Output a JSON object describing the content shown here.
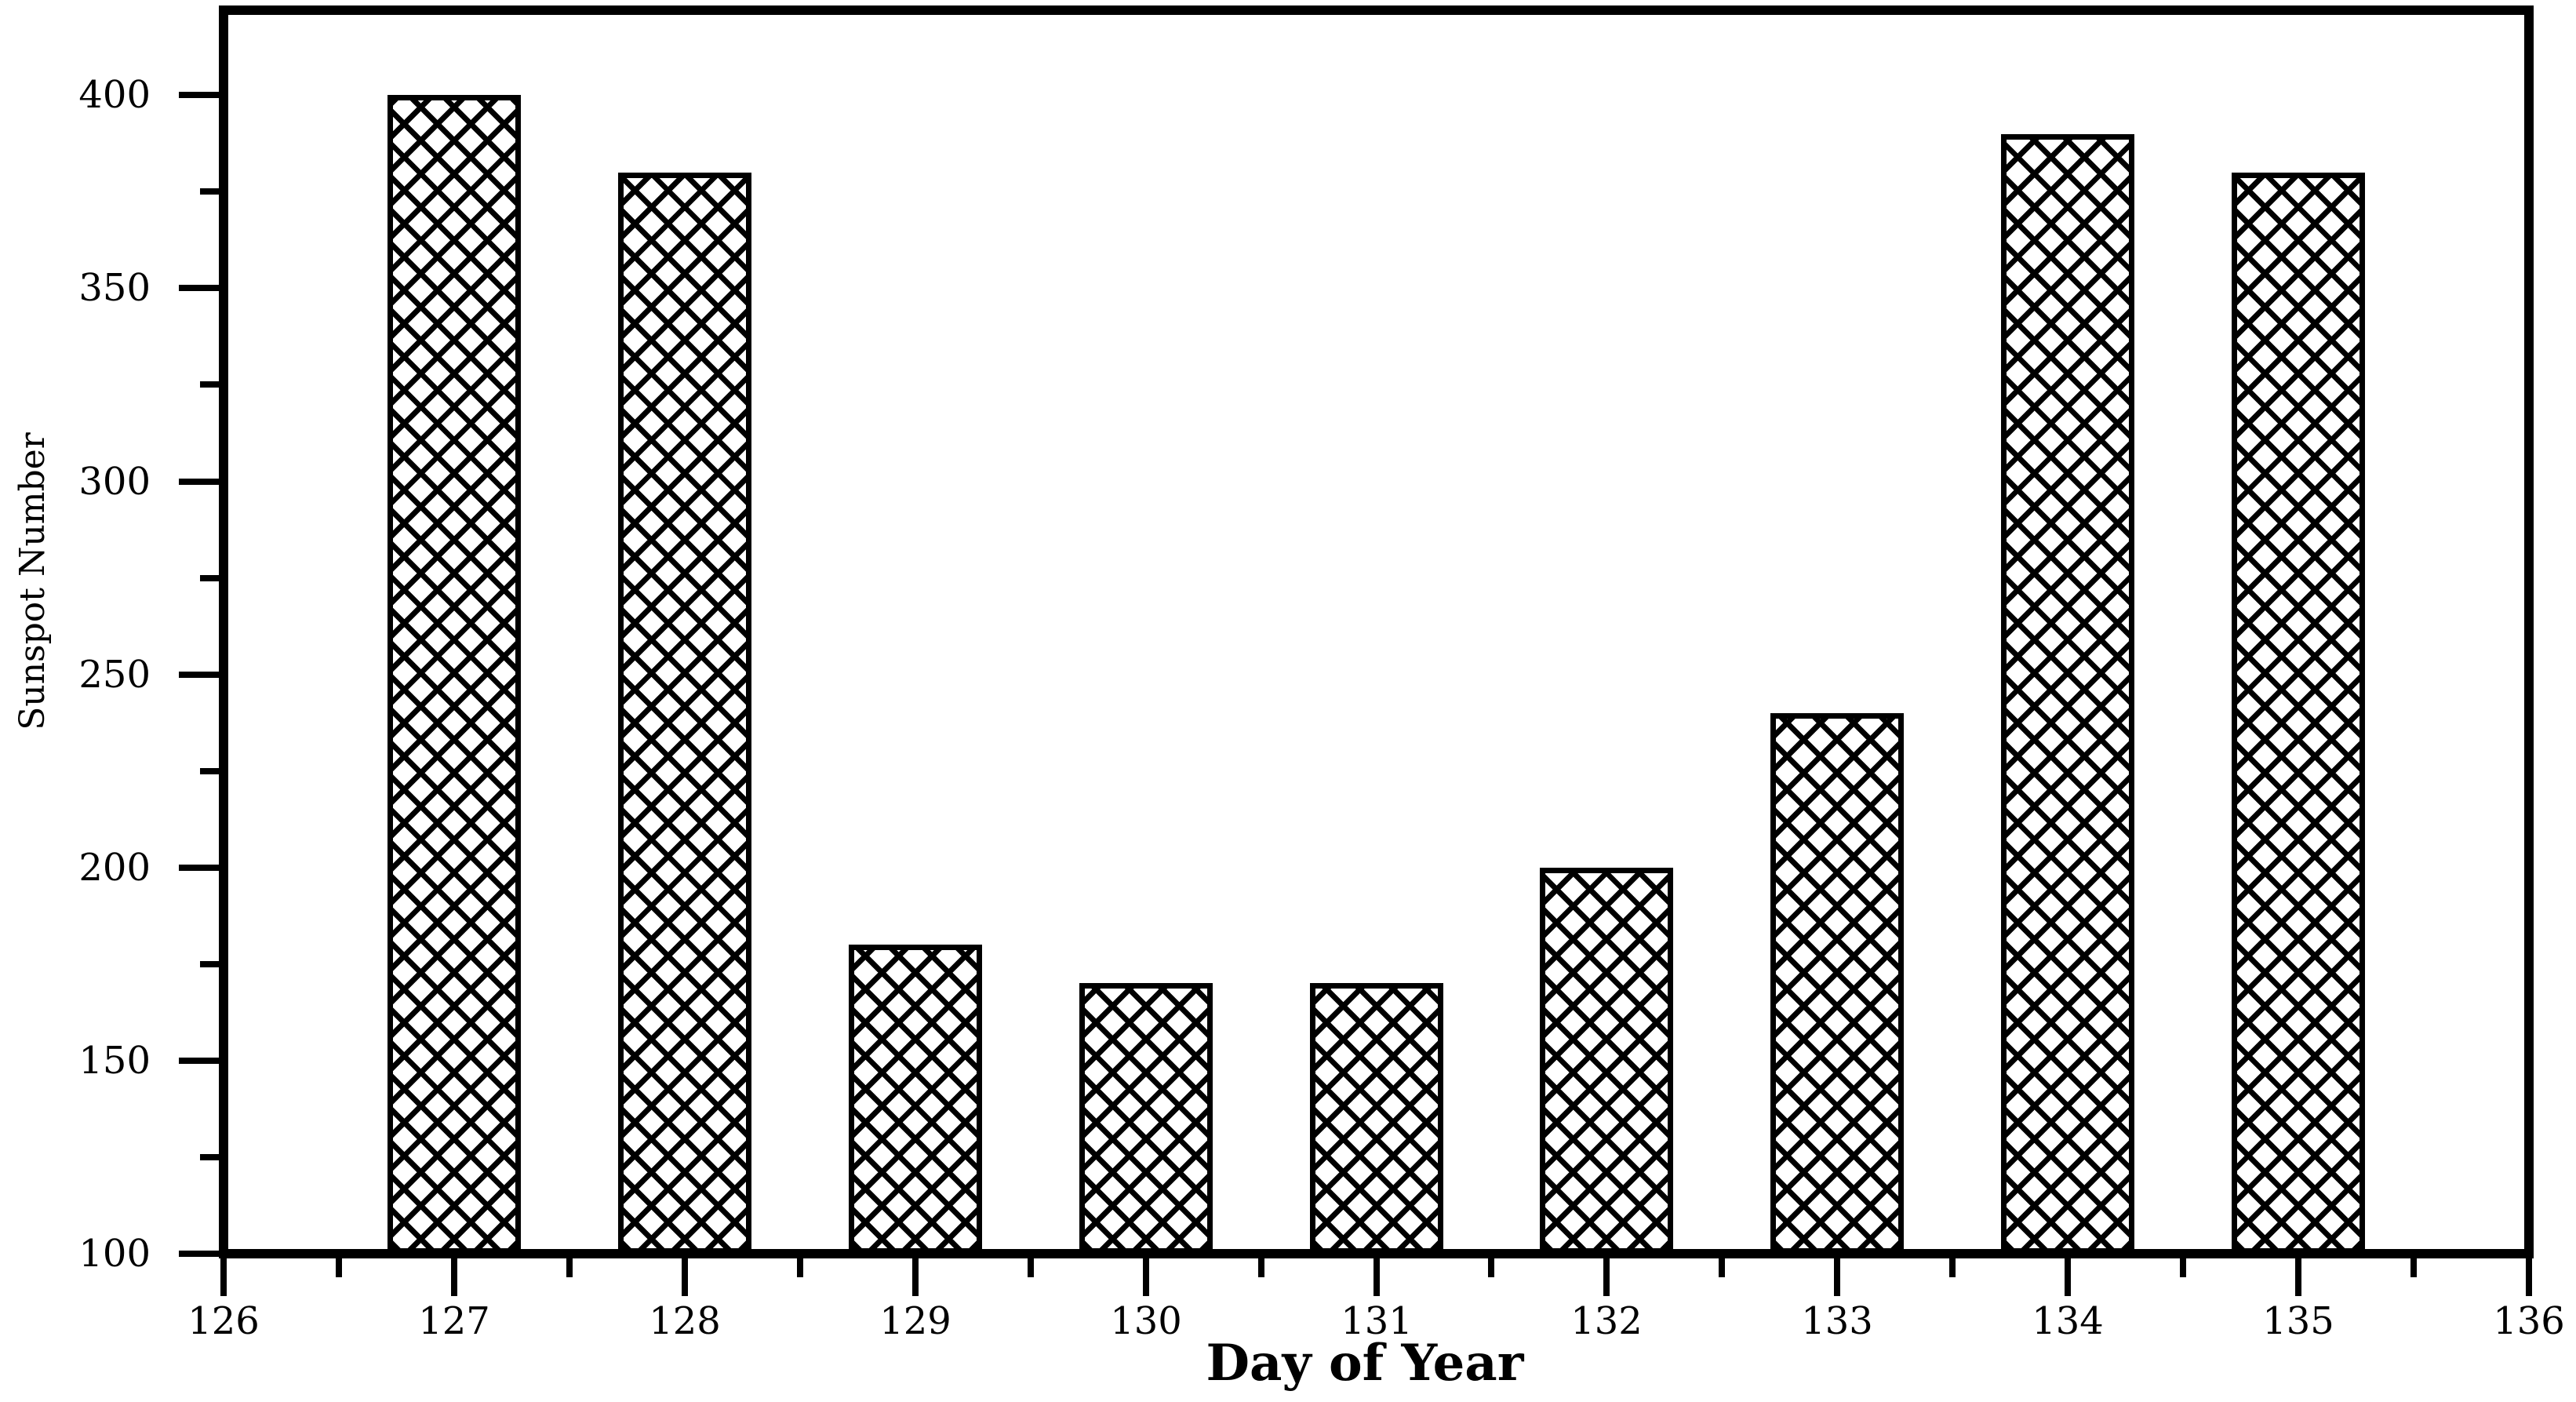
{
  "figure": {
    "background_color": "#ffffff",
    "foreground_color": "#000000"
  },
  "chart_data": {
    "type": "bar",
    "title": "",
    "xlabel": "Day of Year",
    "ylabel": "Sunspot Number",
    "x": [
      127,
      128,
      129,
      130,
      131,
      132,
      133,
      134,
      135
    ],
    "values": [
      400,
      380,
      180,
      170,
      170,
      200,
      240,
      390,
      380
    ],
    "xlim": [
      126,
      136
    ],
    "ylim": [
      100,
      422
    ],
    "x_major_ticks": [
      126,
      127,
      128,
      129,
      130,
      131,
      132,
      133,
      134,
      135,
      136
    ],
    "x_tick_labels": [
      "126",
      "127",
      "128",
      "129",
      "130",
      "131",
      "132",
      "133",
      "134",
      "135",
      "136"
    ],
    "x_minor_step": 0.5,
    "y_major_ticks": [
      100,
      150,
      200,
      250,
      300,
      350,
      400
    ],
    "y_tick_labels": [
      "100",
      "150",
      "200",
      "250",
      "300",
      "350",
      "400"
    ],
    "y_minor_step": 25,
    "bar_width_days": 0.578,
    "bar_style": "black-crosshatch-on-white",
    "bar_outline_color": "#000000",
    "bar_fill_background": "#ffffff",
    "grid": false,
    "legend": "none",
    "tick_direction": "out"
  }
}
